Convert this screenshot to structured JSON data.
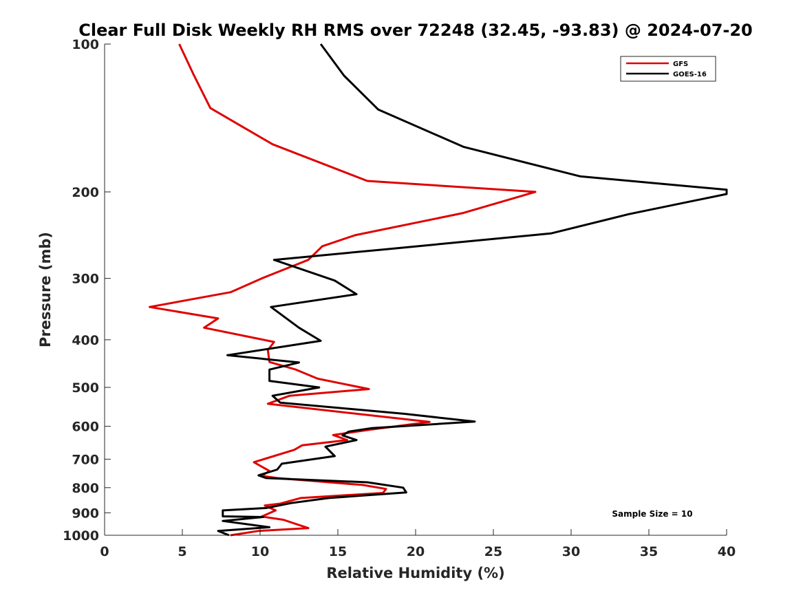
{
  "chart_data": {
    "type": "line",
    "title": "Clear Full Disk Weekly RH RMS over 72248 (32.45, -93.83) @ 2024-07-20",
    "xlabel": "Relative Humidity (%)",
    "ylabel": "Pressure (mb)",
    "xlim": [
      0,
      40
    ],
    "ylim": [
      100,
      1000
    ],
    "y_scale": "log",
    "y_reversed": true,
    "x_ticks": [
      0,
      5,
      10,
      15,
      20,
      25,
      30,
      35,
      40
    ],
    "x_tick_labels": [
      "0",
      "5",
      "10",
      "15",
      "20",
      "25",
      "30",
      "35",
      "40"
    ],
    "y_ticks": [
      100,
      200,
      300,
      400,
      500,
      600,
      700,
      800,
      900,
      1000
    ],
    "y_tick_labels": [
      "100",
      "200",
      "300",
      "400",
      "500",
      "600",
      "700",
      "800",
      "900",
      "1000"
    ],
    "legend_position": "top-right",
    "annotation": "Sample Size = 10",
    "series": [
      {
        "name": "GFS",
        "color": "#e00000",
        "points": [
          [
            4.8,
            100
          ],
          [
            5.7,
            115
          ],
          [
            6.8,
            135
          ],
          [
            10.8,
            160
          ],
          [
            16.9,
            190
          ],
          [
            27.7,
            200
          ],
          [
            23.0,
            221
          ],
          [
            16.1,
            245
          ],
          [
            14.0,
            258
          ],
          [
            13.1,
            275
          ],
          [
            10.1,
            300
          ],
          [
            8.1,
            320
          ],
          [
            2.9,
            343
          ],
          [
            7.3,
            362
          ],
          [
            6.4,
            378
          ],
          [
            10.9,
            404
          ],
          [
            10.5,
            420
          ],
          [
            10.6,
            444
          ],
          [
            12.3,
            460
          ],
          [
            13.7,
            480
          ],
          [
            17.0,
            504
          ],
          [
            11.9,
            520
          ],
          [
            10.5,
            540
          ],
          [
            20.9,
            588
          ],
          [
            17.0,
            610
          ],
          [
            14.7,
            625
          ],
          [
            15.6,
            640
          ],
          [
            12.7,
            656
          ],
          [
            12.2,
            670
          ],
          [
            9.6,
            710
          ],
          [
            10.6,
            740
          ],
          [
            10.1,
            757
          ],
          [
            11.1,
            765
          ],
          [
            16.6,
            790
          ],
          [
            18.1,
            805
          ],
          [
            17.9,
            820
          ],
          [
            12.6,
            840
          ],
          [
            11.3,
            862
          ],
          [
            10.3,
            870
          ],
          [
            11.0,
            890
          ],
          [
            10.1,
            916
          ],
          [
            11.5,
            930
          ],
          [
            13.1,
            967
          ],
          [
            9.9,
            980
          ],
          [
            8.1,
            1000
          ]
        ]
      },
      {
        "name": "GOES-16",
        "color": "#000000",
        "points": [
          [
            13.9,
            100
          ],
          [
            15.4,
            116
          ],
          [
            17.6,
            136
          ],
          [
            23.1,
            162
          ],
          [
            30.6,
            186
          ],
          [
            40.0,
            198
          ],
          [
            40.0,
            202
          ],
          [
            33.7,
            222
          ],
          [
            28.7,
            243
          ],
          [
            17.9,
            262
          ],
          [
            10.9,
            275
          ],
          [
            14.8,
            303
          ],
          [
            16.2,
            323
          ],
          [
            10.7,
            343
          ],
          [
            12.5,
            378
          ],
          [
            13.9,
            402
          ],
          [
            7.9,
            430
          ],
          [
            12.5,
            445
          ],
          [
            10.6,
            460
          ],
          [
            10.6,
            485
          ],
          [
            13.8,
            500
          ],
          [
            10.8,
            520
          ],
          [
            11.3,
            537
          ],
          [
            19.3,
            566
          ],
          [
            23.8,
            587
          ],
          [
            17.2,
            605
          ],
          [
            15.7,
            615
          ],
          [
            15.3,
            626
          ],
          [
            16.2,
            640
          ],
          [
            14.2,
            660
          ],
          [
            14.8,
            690
          ],
          [
            11.4,
            715
          ],
          [
            11.1,
            735
          ],
          [
            9.9,
            755
          ],
          [
            10.4,
            765
          ],
          [
            16.9,
            780
          ],
          [
            19.2,
            800
          ],
          [
            19.4,
            818
          ],
          [
            14.4,
            840
          ],
          [
            12.0,
            860
          ],
          [
            10.4,
            880
          ],
          [
            7.6,
            890
          ],
          [
            7.6,
            915
          ],
          [
            10.2,
            918
          ],
          [
            7.6,
            935
          ],
          [
            10.6,
            963
          ],
          [
            7.3,
            980
          ],
          [
            8.0,
            1000
          ]
        ]
      }
    ]
  }
}
